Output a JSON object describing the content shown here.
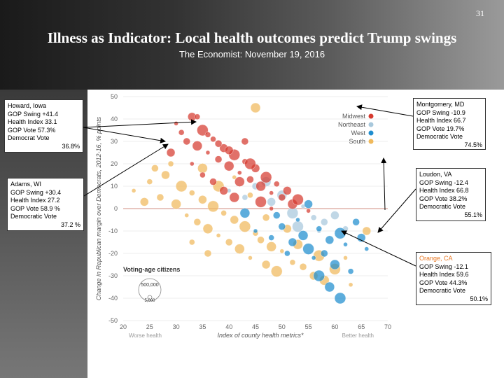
{
  "slide": {
    "page_number": "31",
    "title": "Illness as Indicator: Local health outcomes predict Trump swings",
    "subtitle": "The Economist: November 19, 2016"
  },
  "callouts": {
    "howard": {
      "name": "Howard, Iowa",
      "swing": "GOP Swing  +41.4",
      "health": "Health Index  33.1",
      "gop_vote": "GOP Vote    57.3%",
      "dem_label": "Democrat Vote",
      "dem_value": "36.8%"
    },
    "adams": {
      "name": "Adams, WI",
      "swing": "GOP Swing  +30.4",
      "health": "Health Index  27.2",
      "gop_vote": "GOP Vote    58.9 %",
      "dem_label": "Democratic Vote",
      "dem_value": "37.2 %"
    },
    "montgomery": {
      "name": "Montgomery, MD",
      "swing": "GOP Swing  -10.9",
      "health": "Health Index  66.7",
      "gop_vote": "GOP Vote     19.7%",
      "dem_label": "Democratic Vote",
      "dem_value": "74.5%"
    },
    "loudon": {
      "name": "Loudon, VA",
      "swing": "GOP Swing  -12.4",
      "health": "Health Index  66.8",
      "gop_vote": "GOP Vote     38.2%",
      "dem_label": "Democratic Vote",
      "dem_value": "55.1%"
    },
    "orange": {
      "name": "Orange, CA",
      "swing": "GOP Swing    -12.1",
      "health": "Health Index    59.6",
      "gop_vote": "GOP Vote      44.3%",
      "dem_label": "Democratic Vote",
      "dem_value": "50.1%"
    }
  },
  "chart_data": {
    "type": "scatter",
    "xlabel": "Index of county health metrics*",
    "ylabel": "Change in Republican margin over Democrats, 2012-16, % points",
    "xlim": [
      20,
      70
    ],
    "ylim": [
      -50,
      50
    ],
    "x_ticks": [
      "20",
      "25",
      "30",
      "35",
      "40",
      "45",
      "50",
      "55",
      "60",
      "65",
      "70"
    ],
    "y_ticks": [
      "50",
      "40",
      "30",
      "20",
      "10",
      "0",
      "-10",
      "-20",
      "-30",
      "-40",
      "-50"
    ],
    "x_low_label": "Worse health",
    "x_high_label": "Better health",
    "legend": {
      "position": "top-right",
      "entries": [
        {
          "name": "Midwest",
          "color": "#d63a2f"
        },
        {
          "name": "Northeast",
          "color": "#a8c8dc"
        },
        {
          "name": "West",
          "color": "#1f8ecf"
        },
        {
          "name": "South",
          "color": "#f0b95b"
        }
      ]
    },
    "size_legend": {
      "title": "Voting-age citizens",
      "large": "500,000",
      "small": "5,000"
    },
    "series": [
      {
        "name": "Midwest",
        "points": [
          {
            "x": 30,
            "y": 38
          },
          {
            "x": 31,
            "y": 34
          },
          {
            "x": 32,
            "y": 30
          },
          {
            "x": 33,
            "y": 41
          },
          {
            "x": 34,
            "y": 28
          },
          {
            "x": 35,
            "y": 35
          },
          {
            "x": 36,
            "y": 25
          },
          {
            "x": 37,
            "y": 31
          },
          {
            "x": 38,
            "y": 22
          },
          {
            "x": 39,
            "y": 27
          },
          {
            "x": 40,
            "y": 19
          },
          {
            "x": 41,
            "y": 24
          },
          {
            "x": 42,
            "y": 16
          },
          {
            "x": 43,
            "y": 21
          },
          {
            "x": 44,
            "y": 13
          },
          {
            "x": 45,
            "y": 18
          },
          {
            "x": 46,
            "y": 10
          },
          {
            "x": 47,
            "y": 14
          },
          {
            "x": 48,
            "y": 7
          },
          {
            "x": 49,
            "y": 11
          },
          {
            "x": 50,
            "y": 5
          },
          {
            "x": 51,
            "y": 8
          },
          {
            "x": 52,
            "y": 2
          },
          {
            "x": 53,
            "y": 4
          },
          {
            "x": 55,
            "y": -1
          },
          {
            "x": 36,
            "y": 33
          },
          {
            "x": 38,
            "y": 29
          },
          {
            "x": 40,
            "y": 26
          },
          {
            "x": 42,
            "y": 12
          },
          {
            "x": 44,
            "y": 20
          },
          {
            "x": 33,
            "y": 20
          },
          {
            "x": 35,
            "y": 15
          },
          {
            "x": 37,
            "y": 12
          },
          {
            "x": 39,
            "y": 8
          },
          {
            "x": 41,
            "y": 5
          },
          {
            "x": 46,
            "y": 3
          },
          {
            "x": 48,
            "y": 0
          },
          {
            "x": 34,
            "y": 41
          },
          {
            "x": 43,
            "y": 30
          },
          {
            "x": 29,
            "y": 25
          }
        ]
      },
      {
        "name": "Northeast",
        "points": [
          {
            "x": 40,
            "y": 8
          },
          {
            "x": 43,
            "y": 5
          },
          {
            "x": 45,
            "y": 10
          },
          {
            "x": 48,
            "y": 3
          },
          {
            "x": 50,
            "y": 6
          },
          {
            "x": 52,
            "y": -2
          },
          {
            "x": 54,
            "y": 1
          },
          {
            "x": 56,
            "y": -4
          },
          {
            "x": 58,
            "y": -6
          },
          {
            "x": 60,
            "y": -3
          },
          {
            "x": 47,
            "y": 12
          },
          {
            "x": 53,
            "y": -8
          },
          {
            "x": 57,
            "y": -10
          },
          {
            "x": 62,
            "y": -9
          }
        ]
      },
      {
        "name": "West",
        "points": [
          {
            "x": 45,
            "y": -10
          },
          {
            "x": 48,
            "y": -13
          },
          {
            "x": 50,
            "y": -8
          },
          {
            "x": 52,
            "y": -15
          },
          {
            "x": 54,
            "y": -12
          },
          {
            "x": 55,
            "y": -18
          },
          {
            "x": 56,
            "y": -22
          },
          {
            "x": 57,
            "y": -9
          },
          {
            "x": 58,
            "y": -20
          },
          {
            "x": 59,
            "y": -14
          },
          {
            "x": 60,
            "y": -25
          },
          {
            "x": 61,
            "y": -11
          },
          {
            "x": 62,
            "y": -16
          },
          {
            "x": 63,
            "y": -28
          },
          {
            "x": 64,
            "y": -6
          },
          {
            "x": 65,
            "y": -13
          },
          {
            "x": 59,
            "y": -35
          },
          {
            "x": 61,
            "y": -40
          },
          {
            "x": 53,
            "y": -5
          },
          {
            "x": 51,
            "y": -20
          },
          {
            "x": 49,
            "y": -3
          },
          {
            "x": 55,
            "y": 2
          },
          {
            "x": 43,
            "y": -2
          },
          {
            "x": 57,
            "y": -30
          },
          {
            "x": 66,
            "y": -18
          }
        ]
      },
      {
        "name": "South",
        "points": [
          {
            "x": 22,
            "y": 8
          },
          {
            "x": 25,
            "y": 12
          },
          {
            "x": 27,
            "y": 5
          },
          {
            "x": 28,
            "y": 15
          },
          {
            "x": 30,
            "y": 2
          },
          {
            "x": 31,
            "y": 10
          },
          {
            "x": 32,
            "y": -3
          },
          {
            "x": 33,
            "y": 7
          },
          {
            "x": 34,
            "y": -6
          },
          {
            "x": 35,
            "y": 4
          },
          {
            "x": 36,
            "y": -9
          },
          {
            "x": 37,
            "y": 1
          },
          {
            "x": 38,
            "y": -12
          },
          {
            "x": 39,
            "y": -2
          },
          {
            "x": 40,
            "y": -15
          },
          {
            "x": 41,
            "y": -5
          },
          {
            "x": 42,
            "y": -18
          },
          {
            "x": 43,
            "y": -8
          },
          {
            "x": 44,
            "y": -22
          },
          {
            "x": 45,
            "y": -11
          },
          {
            "x": 46,
            "y": -14
          },
          {
            "x": 47,
            "y": -25
          },
          {
            "x": 48,
            "y": -17
          },
          {
            "x": 49,
            "y": -28
          },
          {
            "x": 50,
            "y": -19
          },
          {
            "x": 52,
            "y": -24
          },
          {
            "x": 54,
            "y": -26
          },
          {
            "x": 56,
            "y": -30
          },
          {
            "x": 58,
            "y": -32
          },
          {
            "x": 60,
            "y": -27
          },
          {
            "x": 62,
            "y": -22
          },
          {
            "x": 29,
            "y": 20
          },
          {
            "x": 26,
            "y": 18
          },
          {
            "x": 24,
            "y": 3
          },
          {
            "x": 35,
            "y": 18
          },
          {
            "x": 38,
            "y": 10
          },
          {
            "x": 41,
            "y": 14
          },
          {
            "x": 44,
            "y": 6
          },
          {
            "x": 47,
            "y": -4
          },
          {
            "x": 51,
            "y": -9
          },
          {
            "x": 53,
            "y": -16
          },
          {
            "x": 57,
            "y": -21
          },
          {
            "x": 63,
            "y": -34
          },
          {
            "x": 33,
            "y": -15
          },
          {
            "x": 36,
            "y": -20
          },
          {
            "x": 66,
            "y": -10
          },
          {
            "x": 45,
            "y": 45
          }
        ]
      }
    ]
  }
}
